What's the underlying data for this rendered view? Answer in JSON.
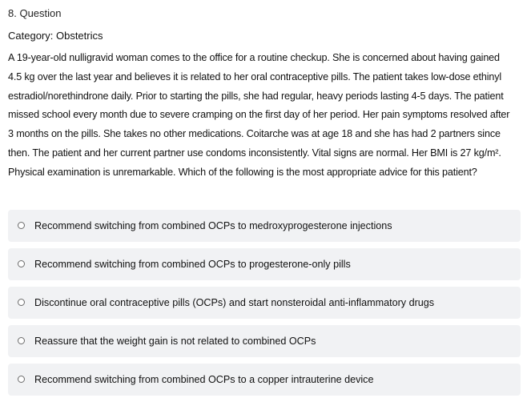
{
  "question": {
    "number_label": "8. Question",
    "category_label": "Category: Obstetrics",
    "stem_lines": [
      "A 19-year-old nulligravid woman comes to the office for a routine checkup.  She is concerned about having gained",
      "4.5 kg over the last year and believes it is related to her oral contraceptive pills.  The patient takes low-dose ethinyl",
      "estradiol/norethindrone daily.  Prior to starting the pills, she had regular, heavy periods lasting 4-5 days.  The patient",
      "missed school every month due to severe cramping on the first day of her period.  Her pain symptoms resolved after",
      "3 months on the pills.  She takes no other medications.  Coitarche was at age 18 and she has had 2 partners since",
      "then.  The patient and her current partner use condoms inconsistently.  Vital signs are normal.  Her BMI is 27 kg/m².",
      "Physical examination is unremarkable.  Which of the following is the most appropriate advice for this patient?"
    ]
  },
  "options": [
    {
      "label": "Recommend switching from combined OCPs to medroxyprogesterone injections",
      "selected": false
    },
    {
      "label": "Recommend switching from combined OCPs to progesterone-only pills",
      "selected": false
    },
    {
      "label": "Discontinue oral contraceptive pills (OCPs) and start nonsteroidal anti-inflammatory drugs",
      "selected": false
    },
    {
      "label": "Reassure that the weight gain is not related to combined OCPs",
      "selected": false
    },
    {
      "label": "Recommend switching from combined OCPs to a copper intrauterine device",
      "selected": false
    }
  ],
  "colors": {
    "option_background": "#f1f2f4",
    "radio_border": "#6b6b6b",
    "text": "#111111"
  }
}
